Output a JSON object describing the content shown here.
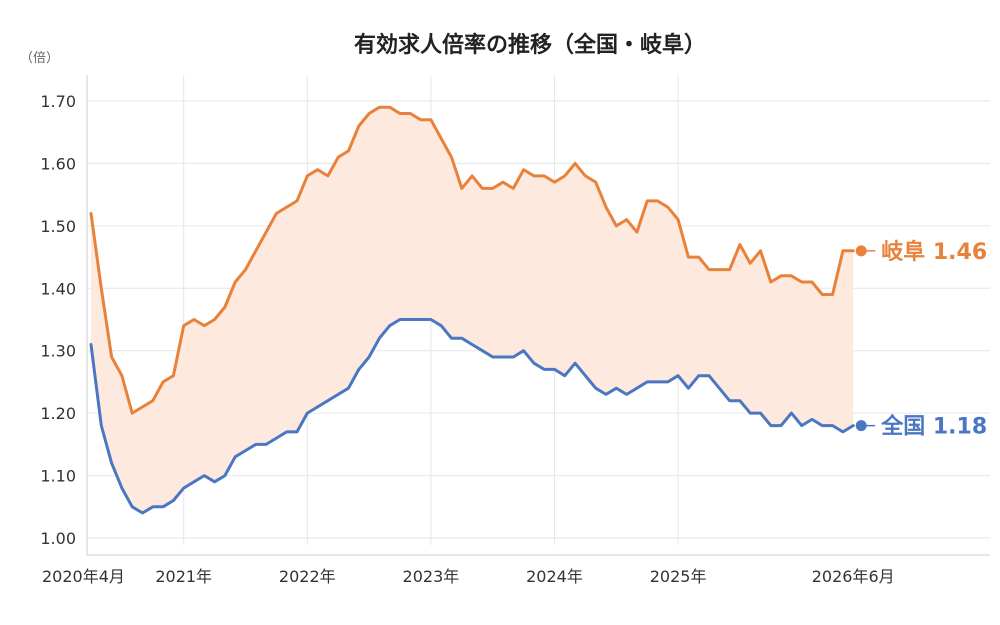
{
  "colors": {
    "gifu": "#e8823a",
    "national": "#4a76c2",
    "band": "#fde9dd",
    "grid": "#e6e6e6",
    "axis": "#cfcfcf"
  },
  "chart_data": {
    "type": "line",
    "title": "有効求人倍率の推移（全国・岐阜）",
    "unit_label": "（倍）",
    "ylim": [
      1.0,
      1.7
    ],
    "yticks": [
      "1.00",
      "1.10",
      "1.20",
      "1.30",
      "1.40",
      "1.50",
      "1.60",
      "1.70"
    ],
    "xticks": [
      {
        "month_index": 0,
        "label": "2020年4月"
      },
      {
        "month_index": 9,
        "label": "2021年"
      },
      {
        "month_index": 21,
        "label": "2022年"
      },
      {
        "month_index": 33,
        "label": "2023年"
      },
      {
        "month_index": 45,
        "label": "2024年"
      },
      {
        "month_index": 57,
        "label": "2025年"
      },
      {
        "month_index": 74,
        "label": "2026年6月"
      }
    ],
    "grid": true,
    "band_between_series": true,
    "series": [
      {
        "name": "岐阜",
        "end_label": "岐阜 1.46",
        "values": [
          1.52,
          1.4,
          1.29,
          1.26,
          1.2,
          1.21,
          1.22,
          1.25,
          1.26,
          1.34,
          1.35,
          1.34,
          1.35,
          1.37,
          1.41,
          1.43,
          1.46,
          1.49,
          1.52,
          1.53,
          1.54,
          1.58,
          1.59,
          1.58,
          1.61,
          1.62,
          1.66,
          1.68,
          1.69,
          1.69,
          1.68,
          1.68,
          1.67,
          1.67,
          1.64,
          1.61,
          1.56,
          1.58,
          1.56,
          1.56,
          1.57,
          1.56,
          1.59,
          1.58,
          1.58,
          1.57,
          1.58,
          1.6,
          1.58,
          1.57,
          1.53,
          1.5,
          1.51,
          1.49,
          1.54,
          1.54,
          1.53,
          1.51,
          1.45,
          1.45,
          1.43,
          1.43,
          1.43,
          1.47,
          1.44,
          1.46,
          1.41,
          1.42,
          1.42,
          1.41,
          1.41,
          1.39,
          1.39,
          1.46,
          1.46
        ]
      },
      {
        "name": "全国",
        "end_label": "全国 1.18",
        "values": [
          1.31,
          1.18,
          1.12,
          1.08,
          1.05,
          1.04,
          1.05,
          1.05,
          1.06,
          1.08,
          1.09,
          1.1,
          1.09,
          1.1,
          1.13,
          1.14,
          1.15,
          1.15,
          1.16,
          1.17,
          1.17,
          1.2,
          1.21,
          1.22,
          1.23,
          1.24,
          1.27,
          1.29,
          1.32,
          1.34,
          1.35,
          1.35,
          1.35,
          1.35,
          1.34,
          1.32,
          1.32,
          1.31,
          1.3,
          1.29,
          1.29,
          1.29,
          1.3,
          1.28,
          1.27,
          1.27,
          1.26,
          1.28,
          1.26,
          1.24,
          1.23,
          1.24,
          1.23,
          1.24,
          1.25,
          1.25,
          1.25,
          1.26,
          1.24,
          1.26,
          1.26,
          1.24,
          1.22,
          1.22,
          1.2,
          1.2,
          1.18,
          1.18,
          1.2,
          1.18,
          1.19,
          1.18,
          1.18,
          1.17,
          1.18
        ]
      }
    ]
  }
}
